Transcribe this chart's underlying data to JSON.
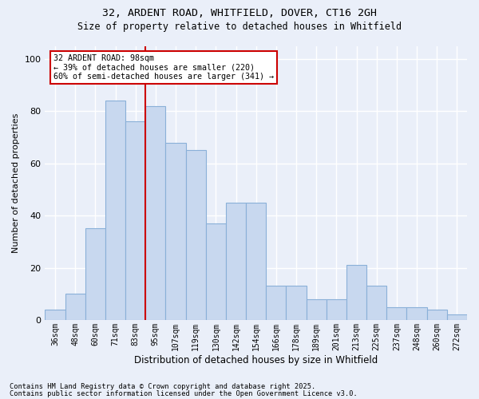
{
  "title1": "32, ARDENT ROAD, WHITFIELD, DOVER, CT16 2GH",
  "title2": "Size of property relative to detached houses in Whitfield",
  "xlabel": "Distribution of detached houses by size in Whitfield",
  "ylabel": "Number of detached properties",
  "bar_color": "#c8d8ef",
  "bar_edge_color": "#8ab0d8",
  "background_color": "#eaeff9",
  "grid_color": "#ffffff",
  "categories": [
    "36sqm",
    "48sqm",
    "60sqm",
    "71sqm",
    "83sqm",
    "95sqm",
    "107sqm",
    "119sqm",
    "130sqm",
    "142sqm",
    "154sqm",
    "166sqm",
    "178sqm",
    "189sqm",
    "201sqm",
    "213sqm",
    "225sqm",
    "237sqm",
    "248sqm",
    "260sqm",
    "272sqm"
  ],
  "values": [
    4,
    10,
    35,
    84,
    76,
    82,
    68,
    65,
    37,
    45,
    45,
    13,
    13,
    8,
    8,
    21,
    13,
    5,
    5,
    4,
    2
  ],
  "annotation_line1": "32 ARDENT ROAD: 98sqm",
  "annotation_line2": "← 39% of detached houses are smaller (220)",
  "annotation_line3": "60% of semi-detached houses are larger (341) →",
  "annotation_box_color": "#ffffff",
  "annotation_box_edge": "#cc0000",
  "vline_color": "#cc0000",
  "vline_position": 4.5,
  "footnote1": "Contains HM Land Registry data © Crown copyright and database right 2025.",
  "footnote2": "Contains public sector information licensed under the Open Government Licence v3.0.",
  "ylim": [
    0,
    105
  ],
  "yticks": [
    0,
    20,
    40,
    60,
    80,
    100
  ]
}
